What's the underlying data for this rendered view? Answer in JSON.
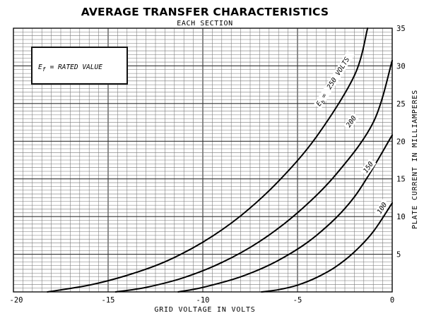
{
  "chart_data": {
    "type": "line",
    "title": "AVERAGE TRANSFER CHARACTERISTICS",
    "subtitle": "EACH SECTION",
    "xlabel": "GRID VOLTAGE IN VOLTS",
    "ylabel": "PLATE CURRENT IN MILLIAMPERES",
    "xlim": [
      -20,
      0
    ],
    "ylim": [
      0,
      35
    ],
    "x_ticks": [
      "-20",
      "-15",
      "-10",
      "-5",
      "0"
    ],
    "y_ticks": [
      "5",
      "10",
      "15",
      "20",
      "25",
      "30",
      "35"
    ],
    "grid": true,
    "annotation": {
      "symbol": "E",
      "subscript": "f",
      "text": "= RATED VALUE"
    },
    "series": [
      {
        "name": "Eb = 250 VOLTS",
        "x": [
          -18.2,
          -16,
          -14,
          -12,
          -10,
          -8,
          -6,
          -4,
          -2,
          -1.3
        ],
        "y": [
          0,
          0.9,
          2.2,
          4.0,
          6.6,
          10.1,
          14.7,
          20.6,
          28.7,
          35.0
        ]
      },
      {
        "name": "200",
        "x": [
          -14.6,
          -13,
          -11,
          -9,
          -7,
          -5,
          -3,
          -1,
          0
        ],
        "y": [
          0,
          0.6,
          1.9,
          3.9,
          6.7,
          10.5,
          15.5,
          22.5,
          30.7
        ]
      },
      {
        "name": "150",
        "x": [
          -11.3,
          -10,
          -8,
          -6,
          -4,
          -2,
          0
        ],
        "y": [
          0,
          0.6,
          2.0,
          4.2,
          7.5,
          12.6,
          20.8
        ]
      },
      {
        "name": "100",
        "x": [
          -6.9,
          -6,
          -5,
          -4,
          -3,
          -2,
          -1,
          0
        ],
        "y": [
          0,
          0.3,
          0.9,
          1.9,
          3.3,
          5.3,
          8.0,
          11.8
        ]
      }
    ],
    "curve_labels": [
      "250 VOLTS",
      "200",
      "150",
      "100"
    ]
  }
}
